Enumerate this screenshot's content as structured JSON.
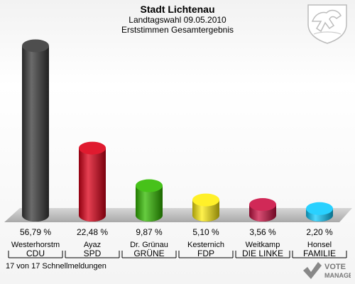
{
  "header": {
    "title": "Stadt Lichtenau",
    "subtitle1": "Landtagswahl 09.05.2010",
    "subtitle2": "Erststimmen Gesamtergebnis"
  },
  "footer": {
    "status": "17 von 17 Schnellmeldungen",
    "logo_text_1": "VOTE",
    "logo_text_2": "MANAGER"
  },
  "chart_data": {
    "type": "bar",
    "title": "Stadt Lichtenau",
    "categories": [
      "Westerhorstm",
      "Ayaz",
      "Dr. Grünau",
      "Kesternich",
      "Weitkamp",
      "Honsel"
    ],
    "parties": [
      "CDU",
      "SPD",
      "GRÜNE",
      "FDP",
      "DIE LINKE",
      "FAMILIE"
    ],
    "values": [
      56.79,
      22.48,
      9.87,
      5.1,
      3.56,
      2.2
    ],
    "value_labels": [
      "56,79 %",
      "22,48 %",
      "9,87 %",
      "5,10 %",
      "3,56 %",
      "2,20 %"
    ],
    "colors": [
      "#3a3a3a",
      "#dd0018",
      "#33bb00",
      "#ffee11",
      "#cc1144",
      "#11ccff"
    ],
    "ylim": [
      0,
      60
    ],
    "grid": false
  }
}
